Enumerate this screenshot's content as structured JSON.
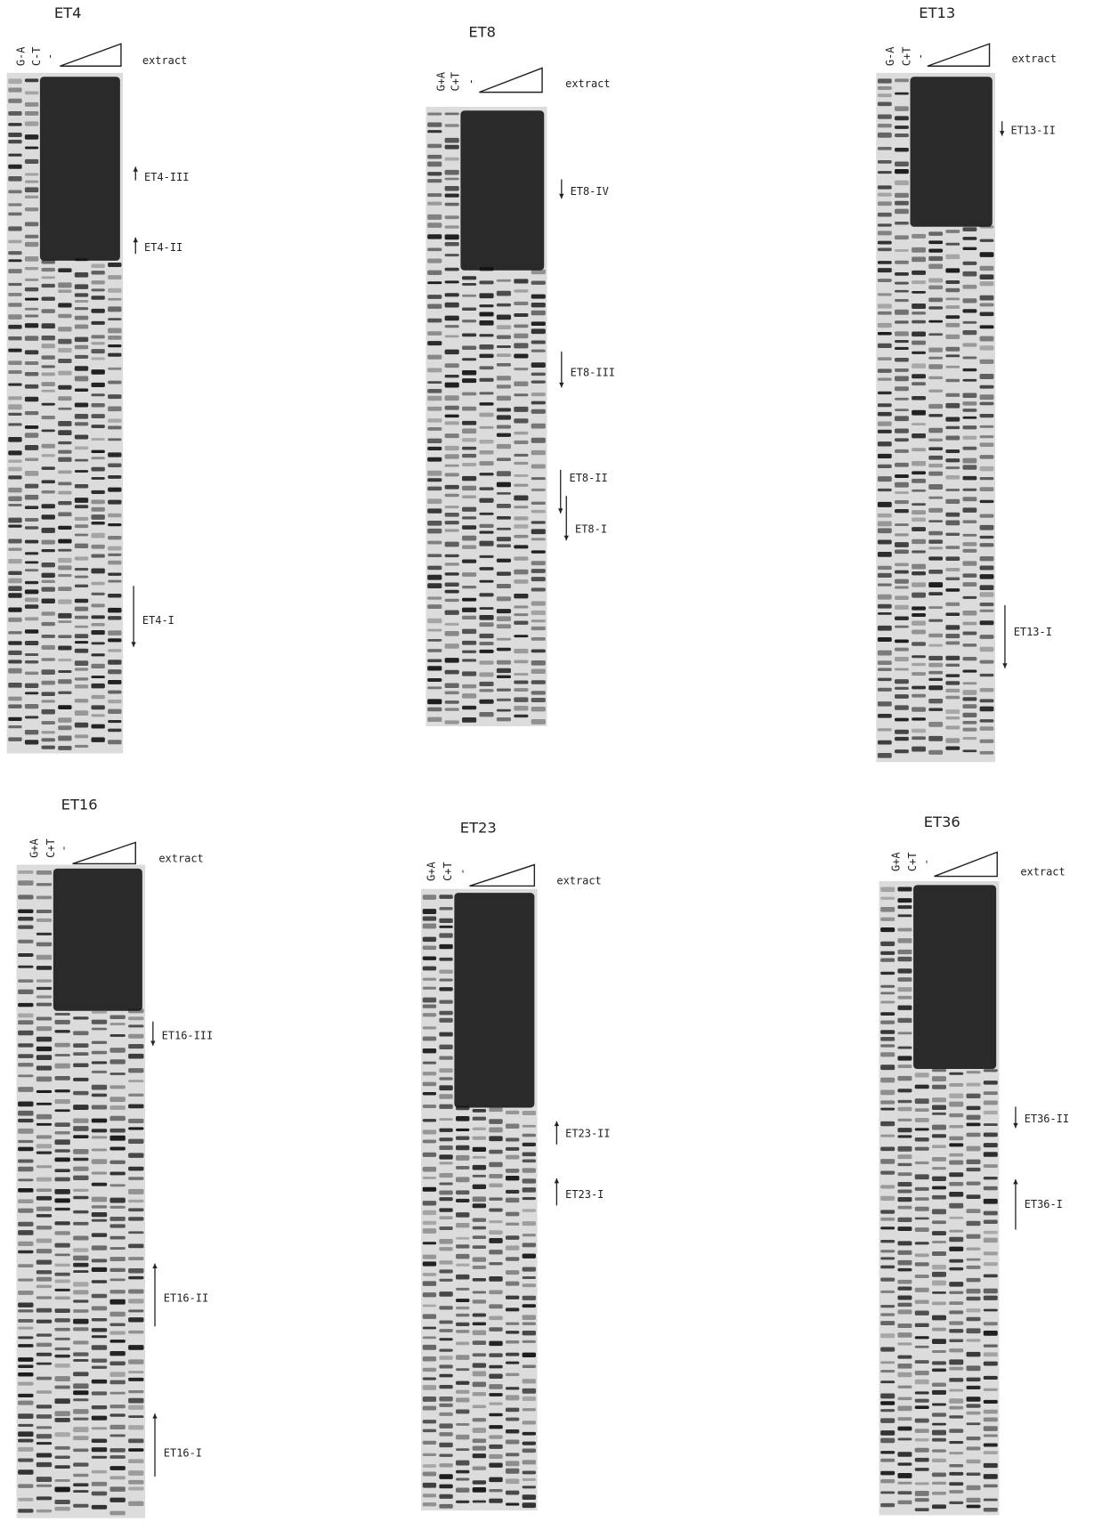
{
  "panels": [
    {
      "title": "ET4",
      "lanes": [
        "G-A",
        "C-T",
        "-"
      ],
      "extract": "extract",
      "regions": [
        {
          "label": "ET4-III"
        },
        {
          "label": "ET4-II"
        },
        {
          "label": "ET4-I"
        }
      ]
    },
    {
      "title": "ET8",
      "lanes": [
        "G+A",
        "C+T",
        "-"
      ],
      "extract": "extract",
      "regions": [
        {
          "label": "ET8-IV"
        },
        {
          "label": "ET8-III"
        },
        {
          "label": "ET8-II"
        },
        {
          "label": "ET8-I"
        }
      ]
    },
    {
      "title": "ET13",
      "lanes": [
        "G-A",
        "C+T",
        "-"
      ],
      "extract": "extract",
      "regions": [
        {
          "label": "ET13-II"
        },
        {
          "label": "ET13-I"
        }
      ]
    },
    {
      "title": "ET16",
      "lanes": [
        "G+A",
        "C+T",
        "-"
      ],
      "extract": "extract",
      "regions": [
        {
          "label": "ET16-III"
        },
        {
          "label": "ET16-II"
        },
        {
          "label": "ET16-I"
        }
      ]
    },
    {
      "title": "ET23",
      "lanes": [
        "G+A",
        "C+T",
        "-"
      ],
      "extract": "extract",
      "regions": [
        {
          "label": "ET23-II"
        },
        {
          "label": "ET23-I"
        }
      ]
    },
    {
      "title": "ET36",
      "lanes": [
        "G+A",
        "C+T",
        "-"
      ],
      "extract": "extract",
      "regions": [
        {
          "label": "ET36-II"
        },
        {
          "label": "ET36-I"
        }
      ]
    }
  ]
}
